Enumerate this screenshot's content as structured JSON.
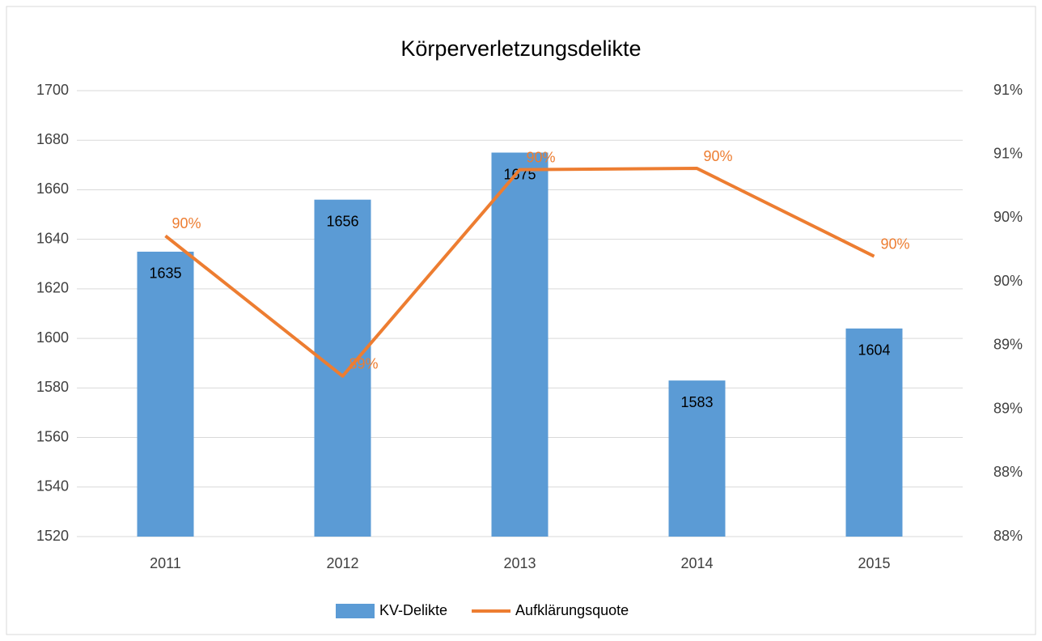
{
  "chart_data": {
    "type": "bar_line",
    "title": "Körperverletzungsdelikte",
    "categories": [
      "2011",
      "2012",
      "2013",
      "2014",
      "2015"
    ],
    "series": [
      {
        "name": "KV-Delikte",
        "type": "bar",
        "color": "#5b9bd5",
        "values": [
          1635,
          1656,
          1675,
          1583,
          1604
        ]
      },
      {
        "name": "Aufklärungsquote",
        "type": "line",
        "axis": "y2",
        "color": "#ed7d31",
        "values": [
          89.86,
          88.76,
          90.38,
          90.39,
          89.7
        ],
        "value_labels": [
          "90%",
          "89%",
          "90%",
          "90%",
          "90%"
        ]
      }
    ],
    "ylim": [
      1520,
      1700
    ],
    "yticks": [
      1520,
      1540,
      1560,
      1580,
      1600,
      1620,
      1640,
      1660,
      1680,
      1700
    ],
    "y2lim": [
      87.5,
      91
    ],
    "y2ticks": [
      {
        "value": 87.5,
        "label": "88%"
      },
      {
        "value": 88,
        "label": "88%"
      },
      {
        "value": 88.5,
        "label": "89%"
      },
      {
        "value": 89,
        "label": "89%"
      },
      {
        "value": 89.5,
        "label": "90%"
      },
      {
        "value": 90,
        "label": "90%"
      },
      {
        "value": 90.5,
        "label": "91%"
      },
      {
        "value": 91,
        "label": "91%"
      }
    ],
    "grid": true,
    "legend": "bottom"
  }
}
